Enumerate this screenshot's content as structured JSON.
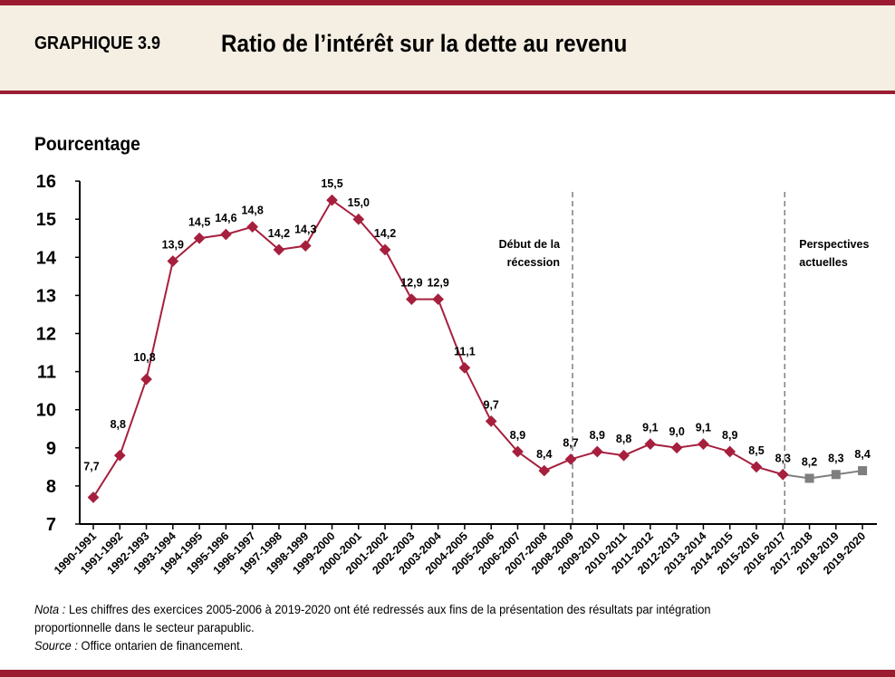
{
  "header": {
    "figure_label": "GRAPHIQUE 3.9",
    "title": "Ratio de l’intérêt sur la dette au revenu"
  },
  "colors": {
    "brand": "#9b1c31",
    "actual": "#a6203e",
    "outlook": "#7f7f7f",
    "header_bg": "#f5efe3"
  },
  "chart_data": {
    "type": "line",
    "title": "Ratio de l’intérêt sur la dette au revenu",
    "ylabel": "Pourcentage",
    "ylim": [
      7,
      16
    ],
    "yticks": [
      "7",
      "8",
      "9",
      "10",
      "11",
      "12",
      "13",
      "14",
      "15",
      "16"
    ],
    "grid": false,
    "categories": [
      "1990-1991",
      "1991-1992",
      "1992-1993",
      "1993-1994",
      "1994-1995",
      "1995-1996",
      "1996-1997",
      "1997-1998",
      "1998-1999",
      "1999-2000",
      "2000-2001",
      "2001-2002",
      "2002-2003",
      "2003-2004",
      "2004-2005",
      "2005-2006",
      "2006-2007",
      "2007-2008",
      "2008-2009",
      "2009-2010",
      "2010-2011",
      "2011-2012",
      "2012-2013",
      "2013-2014",
      "2014-2015",
      "2015-2016",
      "2016-2017",
      "2017-2018",
      "2018-2019",
      "2019-2020"
    ],
    "values": [
      7.7,
      8.8,
      10.8,
      13.9,
      14.5,
      14.6,
      14.8,
      14.2,
      14.3,
      15.5,
      15.0,
      14.2,
      12.9,
      12.9,
      11.1,
      9.7,
      8.9,
      8.4,
      8.7,
      8.9,
      8.8,
      9.1,
      9.0,
      9.1,
      8.9,
      8.5,
      8.3,
      8.2,
      8.3,
      8.4
    ],
    "data_labels": [
      "7,7",
      "8,8",
      "10,8",
      "13,9",
      "14,5",
      "14,6",
      "14,8",
      "14,2",
      "14,3",
      "15,5",
      "15,0",
      "14,2",
      "12,9",
      "12,9",
      "11,1",
      "9,7",
      "8,9",
      "8,4",
      "8,7",
      "8,9",
      "8,8",
      "9,1",
      "9,0",
      "9,1",
      "8,9",
      "8,5",
      "8,3",
      "8,2",
      "8,3",
      "8,4"
    ],
    "outlook_start_index": 26,
    "annotations": [
      {
        "category": "2008-2009",
        "lines": [
          "Début de la",
          "récession"
        ]
      },
      {
        "category": "2016-2017",
        "lines": [
          "Perspectives",
          "actuelles"
        ]
      }
    ]
  },
  "notes": {
    "nota_label": "Nota :",
    "nota_text_1": " Les chiffres  des exercices 2005-2006 à 2019-2020 ont été redressés aux fins de la présentation des résultats par intégration",
    "nota_text_2": "proportionnelle dans le secteur parapublic.",
    "source_label": "Source :",
    "source_text": " Office  ontarien de financement."
  }
}
